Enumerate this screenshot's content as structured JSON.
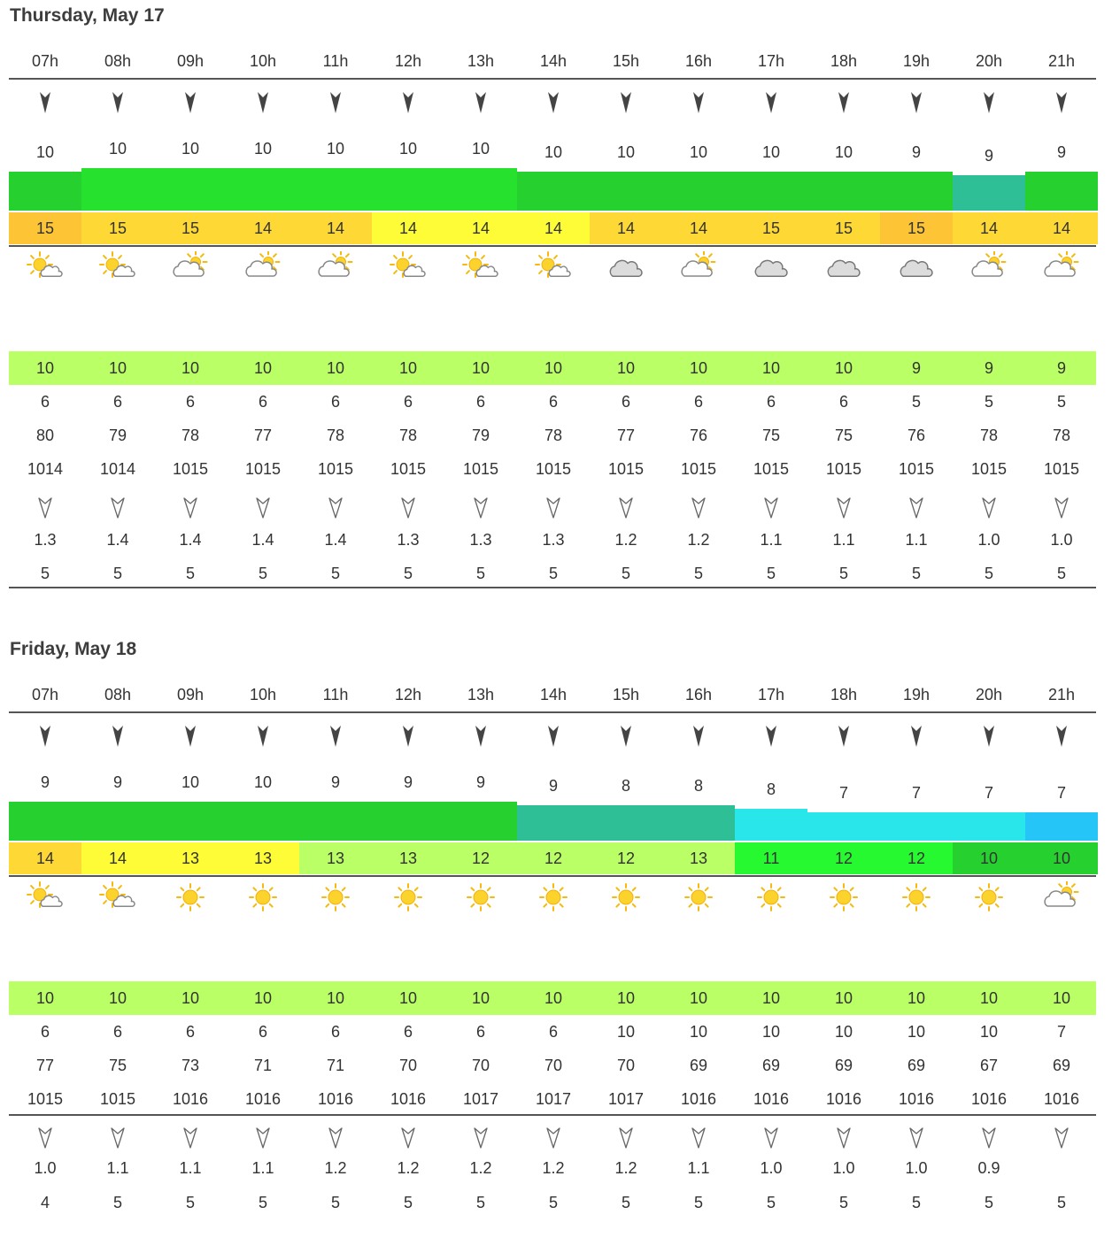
{
  "colors": {
    "wind_bar_green": "#26d02f",
    "wind_bar_bright": "#26e22f",
    "wind_bar_teal": "#2fbf97",
    "wind_bar_cyan": "#28e6ea",
    "wind_bar_blue": "#25c6f7",
    "temp_orange": "#fdc536",
    "temp_gold": "#fed835",
    "temp_yellow": "#fefc36",
    "temp_lime": "#baff65",
    "temp_green": "#27f930",
    "temp_dark_green": "#26d02f",
    "row_lime": "#baff65"
  },
  "days": [
    {
      "title": "Thursday, May 17",
      "hours": [
        "07h",
        "08h",
        "09h",
        "10h",
        "11h",
        "12h",
        "13h",
        "14h",
        "15h",
        "16h",
        "17h",
        "18h",
        "19h",
        "20h",
        "21h"
      ],
      "wind_dir_icon": "wind-arrow-icon",
      "wind_speed": [
        "10",
        "10",
        "10",
        "10",
        "10",
        "10",
        "10",
        "10",
        "10",
        "10",
        "10",
        "10",
        "9",
        "9",
        "9"
      ],
      "wind_level": [
        10,
        11,
        11,
        11,
        11,
        11,
        11,
        10,
        10,
        10,
        10,
        10,
        10,
        9,
        10
      ],
      "wind_color": [
        "#26d02f",
        "#26e22f",
        "#26e22f",
        "#26e22f",
        "#26e22f",
        "#26e22f",
        "#26e22f",
        "#26d02f",
        "#26d02f",
        "#26d02f",
        "#26d02f",
        "#26d02f",
        "#26d02f",
        "#2fbf97",
        "#26d02f"
      ],
      "temp": [
        "15",
        "15",
        "15",
        "14",
        "14",
        "14",
        "14",
        "14",
        "14",
        "14",
        "15",
        "15",
        "15",
        "14",
        "14"
      ],
      "temp_color": [
        "#fdc536",
        "#fed835",
        "#fed835",
        "#fed835",
        "#fed835",
        "#fefc36",
        "#fefc36",
        "#fefc36",
        "#fed835",
        "#fed835",
        "#fed835",
        "#fed835",
        "#fdc536",
        "#fed835",
        "#fed835"
      ],
      "weather_icon": [
        "sun-cloud-icon",
        "sun-cloud-icon",
        "cloud-sun-icon",
        "cloud-sun-icon",
        "cloud-sun-icon",
        "sun-cloud-icon",
        "sun-cloud-icon",
        "sun-cloud-icon",
        "cloud-icon",
        "cloud-sun-icon",
        "cloud-icon",
        "cloud-icon",
        "cloud-icon",
        "cloud-sun-icon",
        "cloud-sun-icon"
      ],
      "row_a": [
        "10",
        "10",
        "10",
        "10",
        "10",
        "10",
        "10",
        "10",
        "10",
        "10",
        "10",
        "10",
        "9",
        "9",
        "9"
      ],
      "row_b": [
        "6",
        "6",
        "6",
        "6",
        "6",
        "6",
        "6",
        "6",
        "6",
        "6",
        "6",
        "6",
        "5",
        "5",
        "5"
      ],
      "humidity": [
        "80",
        "79",
        "78",
        "77",
        "78",
        "78",
        "79",
        "78",
        "77",
        "76",
        "75",
        "75",
        "76",
        "78",
        "78"
      ],
      "pressure": [
        "1014",
        "1014",
        "1015",
        "1015",
        "1015",
        "1015",
        "1015",
        "1015",
        "1015",
        "1015",
        "1015",
        "1015",
        "1015",
        "1015",
        "1015"
      ],
      "swell_dir_icon": "swell-arrow-icon",
      "swell_height": [
        "1.3",
        "1.4",
        "1.4",
        "1.4",
        "1.4",
        "1.3",
        "1.3",
        "1.3",
        "1.2",
        "1.2",
        "1.1",
        "1.1",
        "1.1",
        "1.0",
        "1.0"
      ],
      "swell_period": [
        "5",
        "5",
        "5",
        "5",
        "5",
        "5",
        "5",
        "5",
        "5",
        "5",
        "5",
        "5",
        "5",
        "5",
        "5"
      ]
    },
    {
      "title": "Friday, May 18",
      "hours": [
        "07h",
        "08h",
        "09h",
        "10h",
        "11h",
        "12h",
        "13h",
        "14h",
        "15h",
        "16h",
        "17h",
        "18h",
        "19h",
        "20h",
        "21h"
      ],
      "wind_dir_icon": "wind-arrow-icon",
      "wind_speed": [
        "9",
        "9",
        "10",
        "10",
        "9",
        "9",
        "9",
        "9",
        "8",
        "8",
        "8",
        "7",
        "7",
        "7",
        "7"
      ],
      "wind_level": [
        10,
        10,
        10,
        10,
        10,
        10,
        10,
        9,
        9,
        9,
        8,
        7,
        7,
        7,
        7
      ],
      "wind_color": [
        "#26d02f",
        "#26d02f",
        "#26d02f",
        "#26d02f",
        "#26d02f",
        "#26d02f",
        "#26d02f",
        "#2fbf97",
        "#2fbf97",
        "#2fbf97",
        "#28e6ea",
        "#28e6ea",
        "#28e6ea",
        "#28e6ea",
        "#25c6f7"
      ],
      "temp": [
        "14",
        "14",
        "13",
        "13",
        "13",
        "13",
        "12",
        "12",
        "12",
        "13",
        "11",
        "12",
        "12",
        "10",
        "10"
      ],
      "temp_color": [
        "#fed835",
        "#fefc36",
        "#fefc36",
        "#fefc36",
        "#baff65",
        "#baff65",
        "#baff65",
        "#baff65",
        "#baff65",
        "#baff65",
        "#27f930",
        "#27f930",
        "#27f930",
        "#26d02f",
        "#26d02f"
      ],
      "weather_icon": [
        "sun-cloud-icon",
        "sun-cloud-icon",
        "sun-icon",
        "sun-icon",
        "sun-icon",
        "sun-icon",
        "sun-icon",
        "sun-icon",
        "sun-icon",
        "sun-icon",
        "sun-icon",
        "sun-icon",
        "sun-icon",
        "sun-icon",
        "cloud-sun-icon"
      ],
      "row_a": [
        "10",
        "10",
        "10",
        "10",
        "10",
        "10",
        "10",
        "10",
        "10",
        "10",
        "10",
        "10",
        "10",
        "10",
        "10"
      ],
      "row_b": [
        "6",
        "6",
        "6",
        "6",
        "6",
        "6",
        "6",
        "6",
        "10",
        "10",
        "10",
        "10",
        "10",
        "10",
        "7"
      ],
      "humidity": [
        "77",
        "75",
        "73",
        "71",
        "71",
        "70",
        "70",
        "70",
        "70",
        "69",
        "69",
        "69",
        "69",
        "67",
        "69"
      ],
      "pressure": [
        "1015",
        "1015",
        "1016",
        "1016",
        "1016",
        "1016",
        "1017",
        "1017",
        "1017",
        "1016",
        "1016",
        "1016",
        "1016",
        "1016",
        "1016"
      ],
      "swell_dir_icon": "swell-arrow-icon",
      "swell_height": [
        "1.0",
        "1.1",
        "1.1",
        "1.1",
        "1.2",
        "1.2",
        "1.2",
        "1.2",
        "1.2",
        "1.1",
        "1.0",
        "1.0",
        "1.0",
        "0.9",
        ""
      ],
      "swell_period": [
        "4",
        "5",
        "5",
        "5",
        "5",
        "5",
        "5",
        "5",
        "5",
        "5",
        "5",
        "5",
        "5",
        "5",
        "5"
      ]
    }
  ]
}
